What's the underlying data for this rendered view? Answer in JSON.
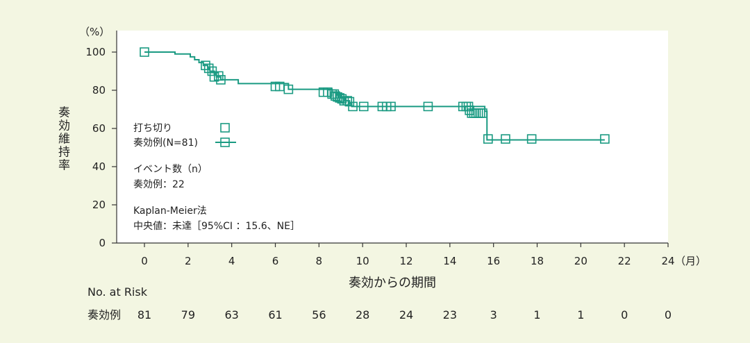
{
  "chart_data": {
    "type": "line",
    "ylabel": "奏効維持率",
    "yunit": "（%）",
    "xlabel": "奏効からの期間",
    "xunit": "（月）",
    "xlim": [
      0,
      24
    ],
    "ylim": [
      0,
      100
    ],
    "xticks": [
      0,
      2,
      4,
      6,
      8,
      10,
      12,
      14,
      16,
      18,
      20,
      22,
      24
    ],
    "yticks": [
      0,
      20,
      40,
      60,
      80,
      100
    ],
    "grid": false,
    "colors": {
      "curve": "#1a9a82",
      "background": "#f3f6e2",
      "plot_bg": "#ffffff"
    },
    "series": [
      {
        "name": "奏効例(N=81)",
        "steps": [
          [
            0,
            100
          ],
          [
            1.4,
            99
          ],
          [
            2.1,
            97.5
          ],
          [
            2.3,
            96
          ],
          [
            2.5,
            94.5
          ],
          [
            2.7,
            93
          ],
          [
            2.9,
            91.5
          ],
          [
            3.0,
            90
          ],
          [
            3.2,
            88.5
          ],
          [
            3.3,
            87
          ],
          [
            3.5,
            85.5
          ],
          [
            4.3,
            83.5
          ],
          [
            6.6,
            80.5
          ],
          [
            8.6,
            79
          ],
          [
            8.8,
            77.5
          ],
          [
            9.0,
            76
          ],
          [
            9.2,
            74.5
          ],
          [
            9.4,
            73
          ],
          [
            9.5,
            71.5
          ],
          [
            15.6,
            69
          ],
          [
            15.7,
            54
          ]
        ],
        "end_x": 21.1,
        "censored": [
          [
            0,
            100
          ],
          [
            2.8,
            93
          ],
          [
            2.95,
            91.5
          ],
          [
            3.1,
            90
          ],
          [
            3.2,
            87
          ],
          [
            3.4,
            87.5
          ],
          [
            3.5,
            85.5
          ],
          [
            6.0,
            82
          ],
          [
            6.2,
            82
          ],
          [
            6.6,
            80.5
          ],
          [
            8.2,
            79
          ],
          [
            8.4,
            79
          ],
          [
            8.6,
            78
          ],
          [
            8.7,
            78
          ],
          [
            8.75,
            77
          ],
          [
            8.85,
            76.5
          ],
          [
            8.95,
            76
          ],
          [
            9.05,
            75.5
          ],
          [
            9.15,
            74.5
          ],
          [
            9.3,
            74.5
          ],
          [
            9.4,
            74
          ],
          [
            9.55,
            71.5
          ],
          [
            10.05,
            71.5
          ],
          [
            10.9,
            71.5
          ],
          [
            11.1,
            71.5
          ],
          [
            11.3,
            71.5
          ],
          [
            13.0,
            71.5
          ],
          [
            14.6,
            71.5
          ],
          [
            14.75,
            71.5
          ],
          [
            14.85,
            71.5
          ],
          [
            14.9,
            69.5
          ],
          [
            15.0,
            68
          ],
          [
            15.1,
            68
          ],
          [
            15.2,
            68
          ],
          [
            15.3,
            68
          ],
          [
            15.4,
            68
          ],
          [
            15.5,
            68
          ],
          [
            15.75,
            54.5
          ],
          [
            16.55,
            54.5
          ],
          [
            17.75,
            54.5
          ],
          [
            21.1,
            54.5
          ]
        ]
      }
    ],
    "legend": {
      "censor_label": "打ち切り",
      "series_label": "奏効例(N=81)"
    },
    "annotations": {
      "events_title": "イベント数（n）",
      "events_value": "奏効例：22",
      "method": "Kaplan-Meier法",
      "median": "中央値：未達［95%CI ：15.6、NE］"
    },
    "risk_table": {
      "title": "No. at Risk",
      "row_label": "奏効例",
      "values": [
        81,
        79,
        63,
        61,
        56,
        28,
        24,
        23,
        3,
        1,
        1,
        0,
        0
      ]
    }
  }
}
